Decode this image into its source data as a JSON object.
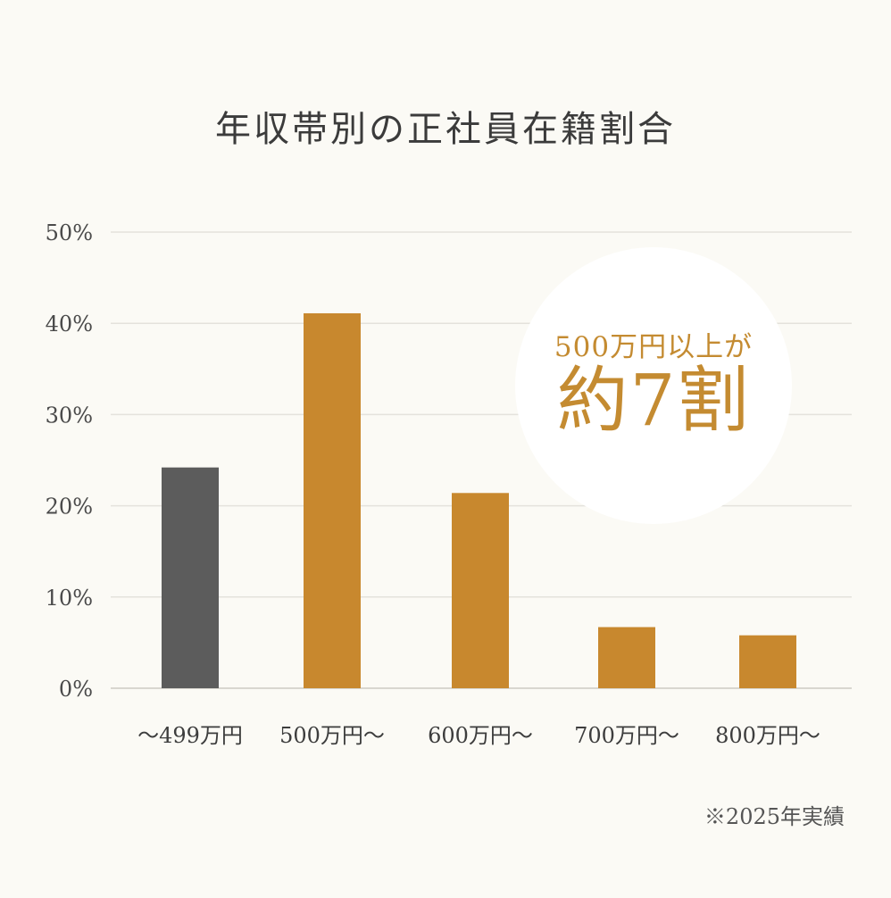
{
  "chart_data": {
    "type": "bar",
    "title": "年収帯別の正社員在籍割合",
    "categories": [
      "～499万円",
      "500万円～",
      "600万円～",
      "700万円～",
      "800万円～"
    ],
    "values": [
      24.2,
      41.1,
      21.4,
      6.7,
      5.8
    ],
    "y_ticks": [
      "0%",
      "10%",
      "20%",
      "30%",
      "40%",
      "50%"
    ],
    "ylim": [
      0,
      50
    ],
    "grid": true,
    "colors": [
      "#5c5c5c",
      "#c8882e",
      "#c8882e",
      "#c8882e",
      "#c8882e"
    ]
  },
  "callout": {
    "line1": "500万円以上が",
    "line2": "約7割"
  },
  "footnote": "※2025年実績"
}
